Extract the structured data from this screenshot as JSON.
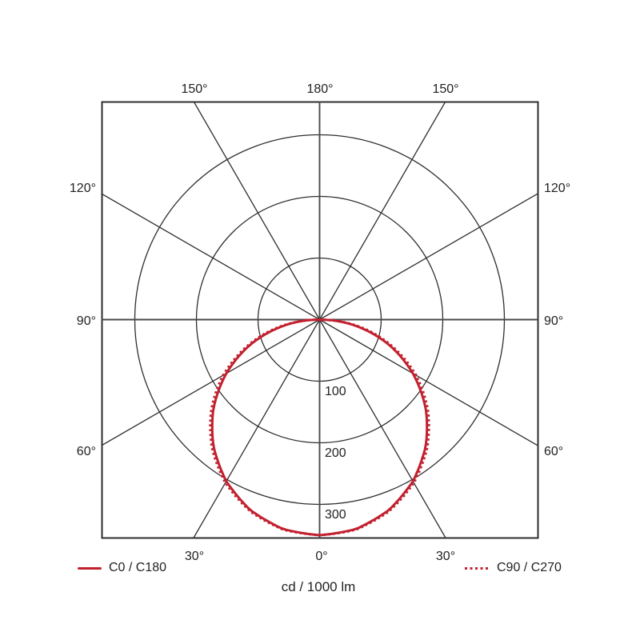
{
  "polar": {
    "angle_labels": {
      "top": [
        "150°",
        "180°",
        "150°"
      ],
      "left": [
        "120°",
        "90°",
        "60°"
      ],
      "right": [
        "120°",
        "90°",
        "60°"
      ],
      "bottom": [
        "30°",
        "0°",
        "30°"
      ]
    },
    "ring_labels": [
      "100",
      "200",
      "300"
    ]
  },
  "legend": {
    "items": [
      {
        "label": "C0 / C180",
        "style": "solid"
      },
      {
        "label": "C90 / C270",
        "style": "dotted"
      }
    ]
  },
  "caption": "cd / 1000 lm",
  "colors": {
    "curve": "#c2202e",
    "grid": "#2e2e2e",
    "axis": "#4a4a4a",
    "text": "#222222"
  },
  "chart_data": {
    "type": "polar",
    "subtype": "photometric-luminous-intensity-distribution",
    "units": "cd / 1000 lm",
    "title": "",
    "angle_ticks_deg": [
      0,
      30,
      60,
      90,
      120,
      150,
      180
    ],
    "ring_values": [
      100,
      200,
      300
    ],
    "grid": true,
    "legend_position": "bottom",
    "gamma_deg": [
      0,
      10,
      20,
      30,
      40,
      50,
      60,
      70,
      80,
      90
    ],
    "series": [
      {
        "name": "C0 / C180",
        "style": "solid",
        "values": [
          350,
          345,
          329,
          303,
          268,
          225,
          175,
          120,
          61,
          0
        ]
      },
      {
        "name": "C90 / C270",
        "style": "dotted",
        "values": [
          350,
          346,
          331,
          306,
          272,
          230,
          181,
          125,
          66,
          0
        ]
      }
    ],
    "max_value_cd_per_1000lm": 350
  }
}
